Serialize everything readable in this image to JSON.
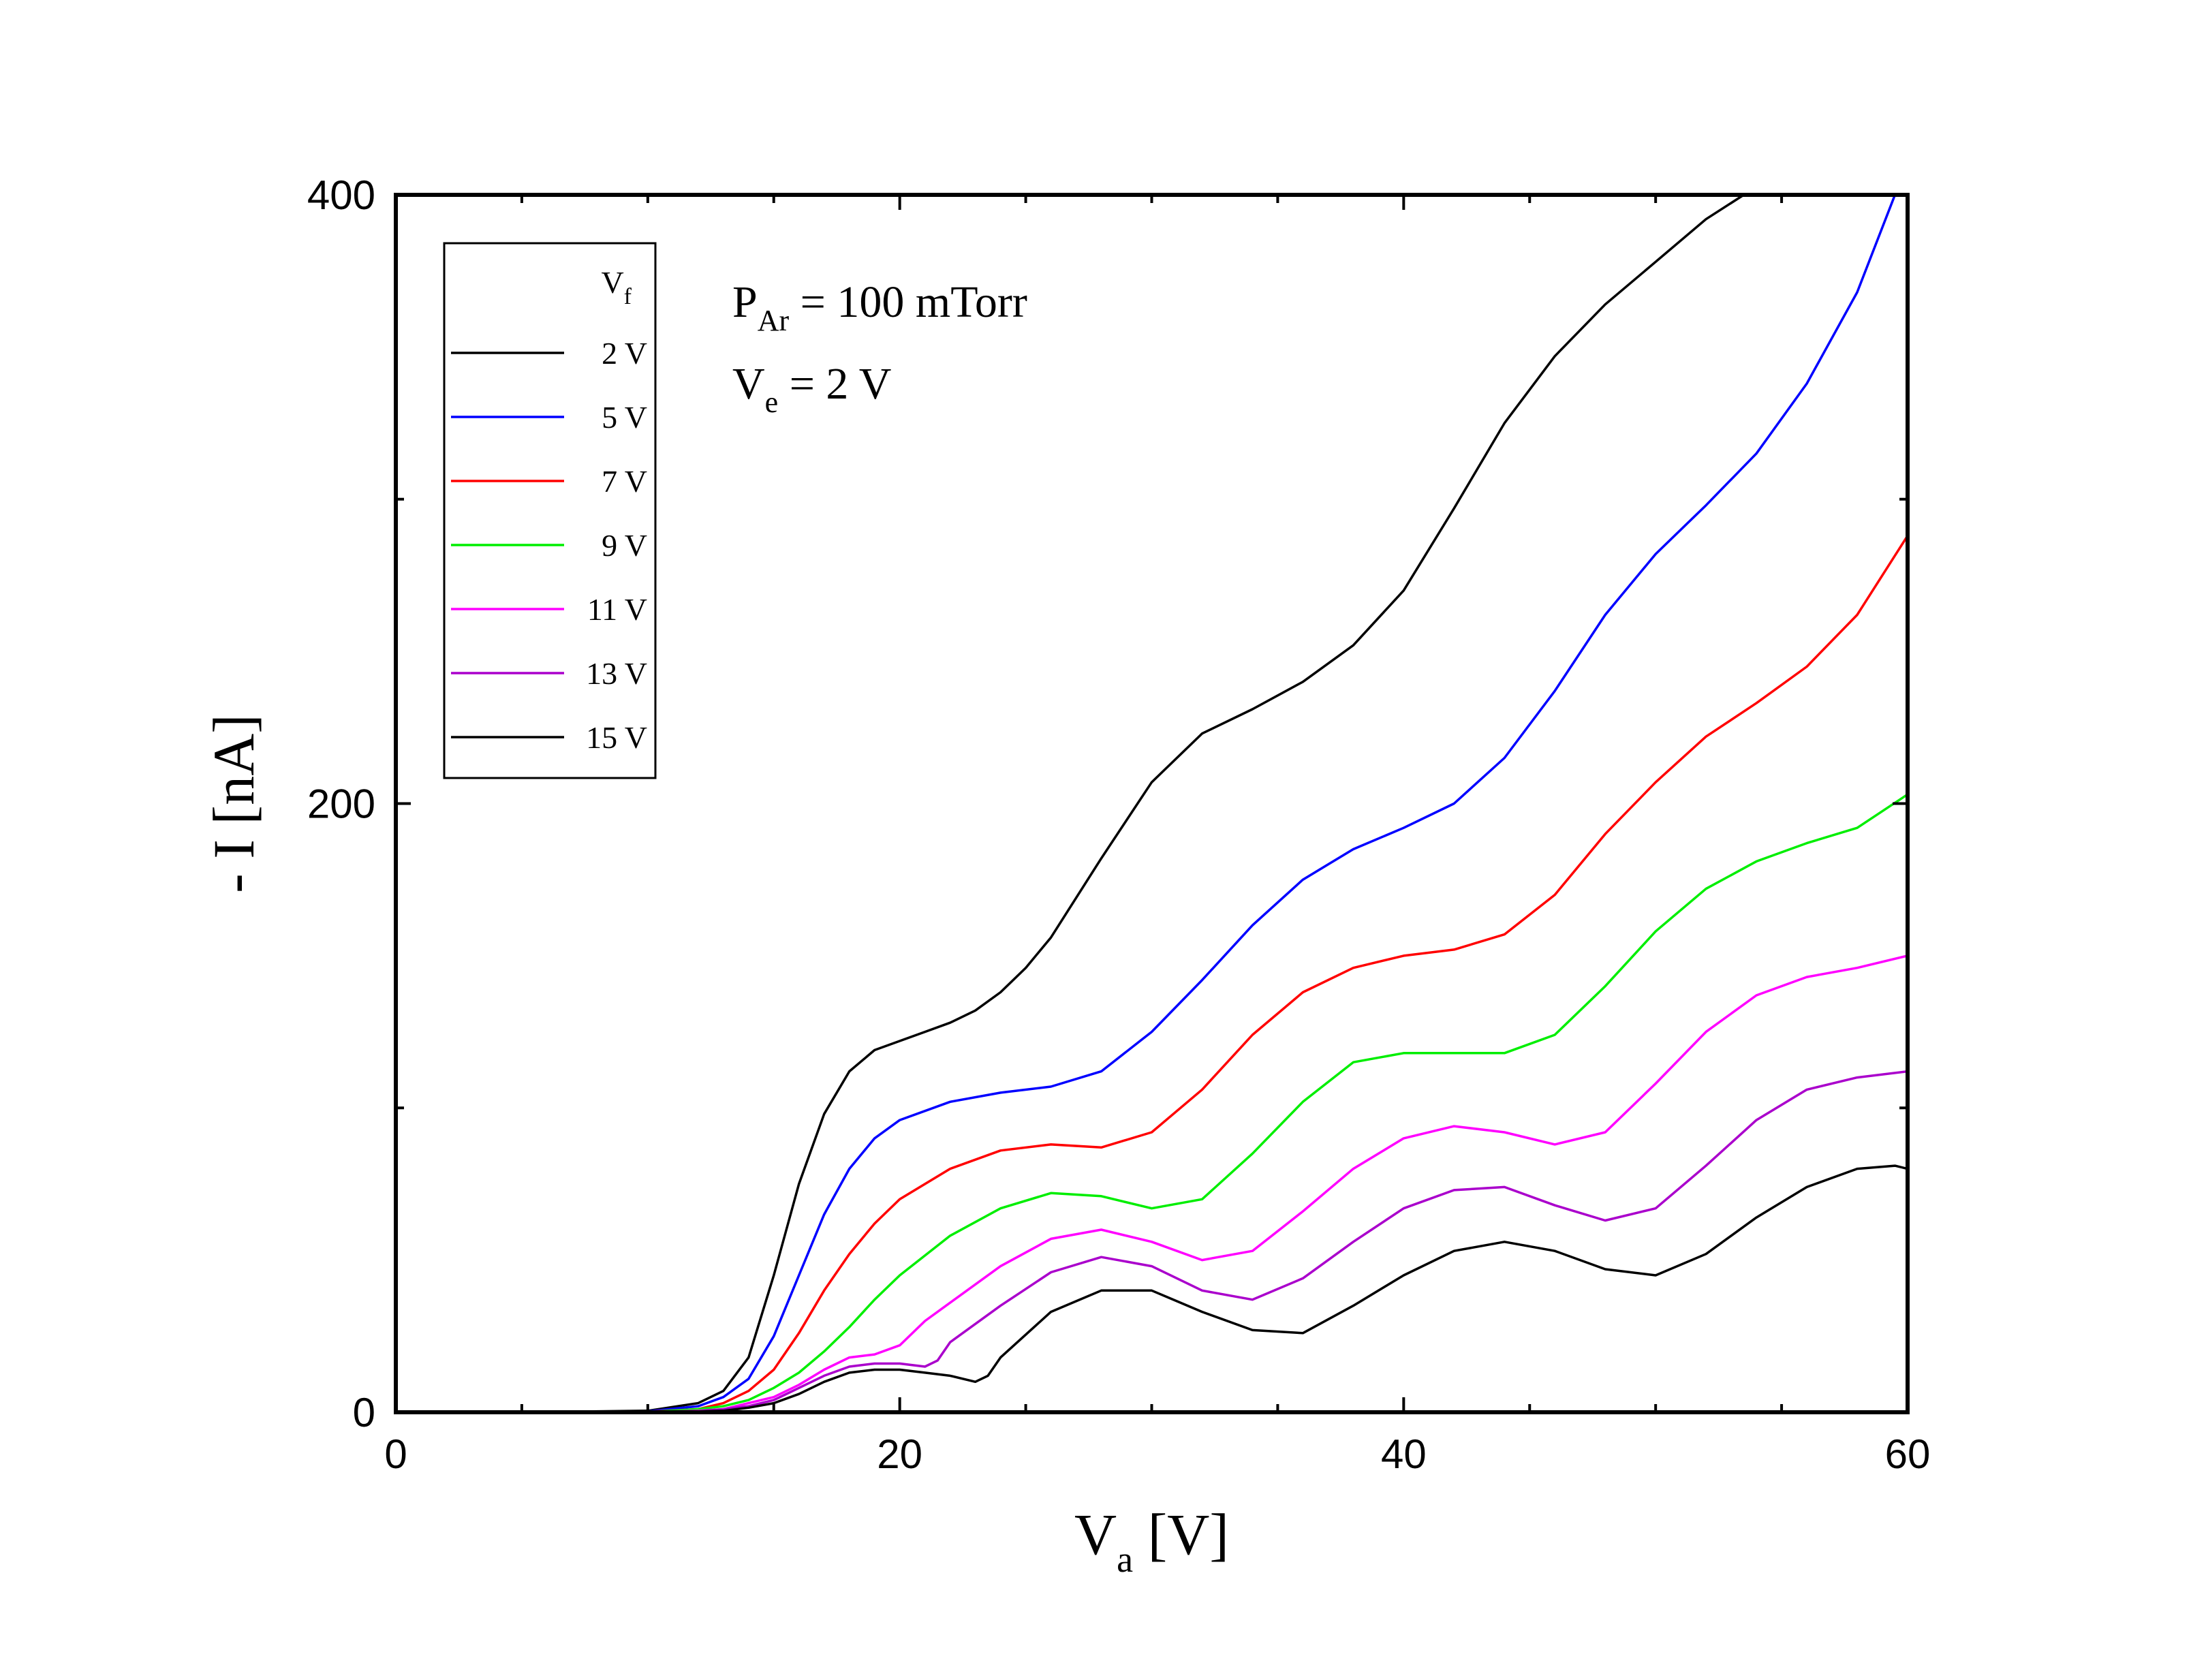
{
  "chart_data": {
    "type": "line",
    "title": "",
    "xlabel": "V",
    "xlabel_sub": "a",
    "xlabel_unit": " [V]",
    "ylabel": "- I [nA]",
    "xlim": [
      0,
      60
    ],
    "ylim": [
      0,
      400
    ],
    "x_ticks": [
      0,
      20,
      40,
      60
    ],
    "y_ticks": [
      0,
      200,
      400
    ],
    "x_minor_ticks": [
      5,
      10,
      15,
      25,
      30,
      35,
      45,
      50,
      55
    ],
    "y_minor_ticks": [
      100,
      300
    ],
    "grid": false,
    "legend": {
      "placement": "top-left",
      "title": "V",
      "title_sub": "f"
    },
    "annotations": [
      {
        "main": "P",
        "sub": "Ar",
        "rest": " = 100 mTorr"
      },
      {
        "main": "V",
        "sub": "e",
        "rest": " = 2 V"
      }
    ],
    "series": [
      {
        "name": "2 V",
        "color": "#000000",
        "x": [
          0,
          5,
          10,
          12,
          13,
          14,
          15,
          16,
          17,
          18,
          19,
          20,
          21,
          22,
          23,
          24,
          25,
          26,
          28,
          30,
          32,
          34,
          36,
          38,
          40,
          42,
          44,
          46,
          48,
          50,
          52,
          53.5
        ],
        "y": [
          0,
          0,
          0.5,
          3,
          7,
          18,
          45,
          75,
          98,
          112,
          119,
          122,
          125,
          128,
          132,
          138,
          146,
          156,
          182,
          207,
          223,
          231,
          240,
          252,
          270,
          297,
          325,
          347,
          364,
          378,
          392,
          400
        ]
      },
      {
        "name": "5 V",
        "color": "#0000ff",
        "x": [
          0,
          5,
          10,
          12,
          13,
          14,
          15,
          16,
          17,
          18,
          19,
          20,
          22,
          24,
          26,
          28,
          30,
          32,
          34,
          36,
          38,
          40,
          42,
          44,
          46,
          48,
          50,
          52,
          54,
          56,
          58,
          59.5
        ],
        "y": [
          0,
          0,
          0.3,
          2,
          5,
          11,
          25,
          45,
          65,
          80,
          90,
          96,
          102,
          105,
          107,
          112,
          125,
          142,
          160,
          175,
          185,
          192,
          200,
          215,
          237,
          262,
          282,
          298,
          315,
          338,
          368,
          400
        ]
      },
      {
        "name": "7 V",
        "color": "#ff0000",
        "x": [
          0,
          5,
          10,
          12,
          13,
          14,
          15,
          16,
          17,
          18,
          19,
          20,
          22,
          24,
          26,
          28,
          30,
          32,
          34,
          36,
          38,
          40,
          42,
          44,
          46,
          48,
          50,
          52,
          54,
          56,
          58,
          60
        ],
        "y": [
          0,
          0,
          0.2,
          1,
          3,
          7,
          14,
          26,
          40,
          52,
          62,
          70,
          80,
          86,
          88,
          87,
          92,
          106,
          124,
          138,
          146,
          150,
          152,
          157,
          170,
          190,
          207,
          222,
          233,
          245,
          262,
          288
        ]
      },
      {
        "name": "9 V",
        "color": "#00ee00",
        "x": [
          0,
          5,
          10,
          12,
          13,
          14,
          15,
          16,
          17,
          18,
          19,
          20,
          22,
          24,
          26,
          28,
          30,
          32,
          34,
          36,
          38,
          40,
          42,
          44,
          46,
          48,
          50,
          52,
          54,
          56,
          58,
          60
        ],
        "y": [
          0,
          0,
          0.1,
          1,
          2,
          4,
          8,
          13,
          20,
          28,
          37,
          45,
          58,
          67,
          72,
          71,
          67,
          70,
          85,
          102,
          115,
          118,
          118,
          118,
          124,
          140,
          158,
          172,
          181,
          187,
          192,
          203
        ]
      },
      {
        "name": "11 V",
        "color": "#ff00ff",
        "x": [
          0,
          5,
          10,
          12,
          13,
          14,
          15,
          16,
          17,
          18,
          19,
          20,
          21,
          22,
          24,
          26,
          28,
          30,
          32,
          34,
          36,
          38,
          40,
          42,
          44,
          46,
          48,
          50,
          52,
          54,
          56,
          58,
          60
        ],
        "y": [
          0,
          0,
          0.1,
          0.5,
          1,
          3,
          5,
          9,
          14,
          18,
          19,
          22,
          30,
          36,
          48,
          57,
          60,
          56,
          50,
          53,
          66,
          80,
          90,
          94,
          92,
          88,
          92,
          108,
          125,
          137,
          143,
          146,
          150
        ]
      },
      {
        "name": "13 V",
        "color": "#aa00cc",
        "x": [
          0,
          5,
          10,
          12,
          13,
          14,
          15,
          16,
          17,
          18,
          19,
          20,
          21,
          21.5,
          22,
          24,
          26,
          28,
          30,
          32,
          34,
          36,
          38,
          40,
          42,
          44,
          46,
          48,
          50,
          52,
          54,
          56,
          58,
          60
        ],
        "y": [
          0,
          0,
          0.1,
          0.3,
          1,
          2,
          4,
          8,
          12,
          15,
          16,
          16,
          15,
          17,
          23,
          35,
          46,
          51,
          48,
          40,
          37,
          44,
          56,
          67,
          73,
          74,
          68,
          63,
          67,
          81,
          96,
          106,
          110,
          112
        ]
      },
      {
        "name": "15 V",
        "color": "#000000",
        "x": [
          0,
          5,
          10,
          12,
          13,
          14,
          15,
          16,
          17,
          18,
          19,
          20,
          21,
          22,
          23,
          23.5,
          24,
          26,
          28,
          30,
          32,
          34,
          36,
          38,
          40,
          42,
          44,
          46,
          48,
          50,
          52,
          54,
          56,
          58,
          59.5,
          60
        ],
        "y": [
          0,
          0,
          0.1,
          0.3,
          0.5,
          1.5,
          3,
          6,
          10,
          13,
          14,
          14,
          13,
          12,
          10,
          12,
          18,
          33,
          40,
          40,
          33,
          27,
          26,
          35,
          45,
          53,
          56,
          53,
          47,
          45,
          52,
          64,
          74,
          80,
          81,
          80
        ]
      }
    ]
  }
}
